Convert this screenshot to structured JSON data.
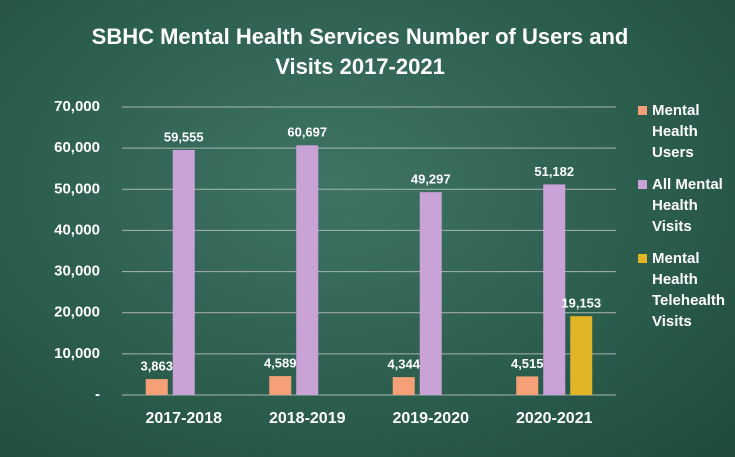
{
  "chart_data": {
    "type": "bar",
    "title": "SBHC Mental Health Services Number of Users and Visits 2017-2021",
    "categories": [
      "2017-2018",
      "2018-2019",
      "2019-2020",
      "2020-2021"
    ],
    "series": [
      {
        "name": "Mental Health Users",
        "color": "#f6a078",
        "values": [
          3863,
          4589,
          4344,
          4515
        ],
        "value_labels": [
          "3,863",
          "4,589",
          "4,344",
          "4,515"
        ]
      },
      {
        "name": "All Mental Health Visits",
        "color": "#c9a3d6",
        "values": [
          59555,
          60697,
          49297,
          51182
        ],
        "value_labels": [
          "59,555",
          "60,697",
          "49,297",
          "51,182"
        ]
      },
      {
        "name": "Mental Health Telehealth Visits",
        "color": "#e2b526",
        "values": [
          null,
          null,
          null,
          19153
        ],
        "value_labels": [
          null,
          null,
          null,
          "19,153"
        ]
      }
    ],
    "ylim": [
      0,
      70000
    ],
    "yticks": [
      {
        "value": 0,
        "label": "-"
      },
      {
        "value": 10000,
        "label": "10,000"
      },
      {
        "value": 20000,
        "label": "20,000"
      },
      {
        "value": 30000,
        "label": "30,000"
      },
      {
        "value": 40000,
        "label": "40,000"
      },
      {
        "value": 50000,
        "label": "50,000"
      },
      {
        "value": 60000,
        "label": "60,000"
      },
      {
        "value": 70000,
        "label": "70,000"
      }
    ],
    "grid": true,
    "legend": "right"
  }
}
